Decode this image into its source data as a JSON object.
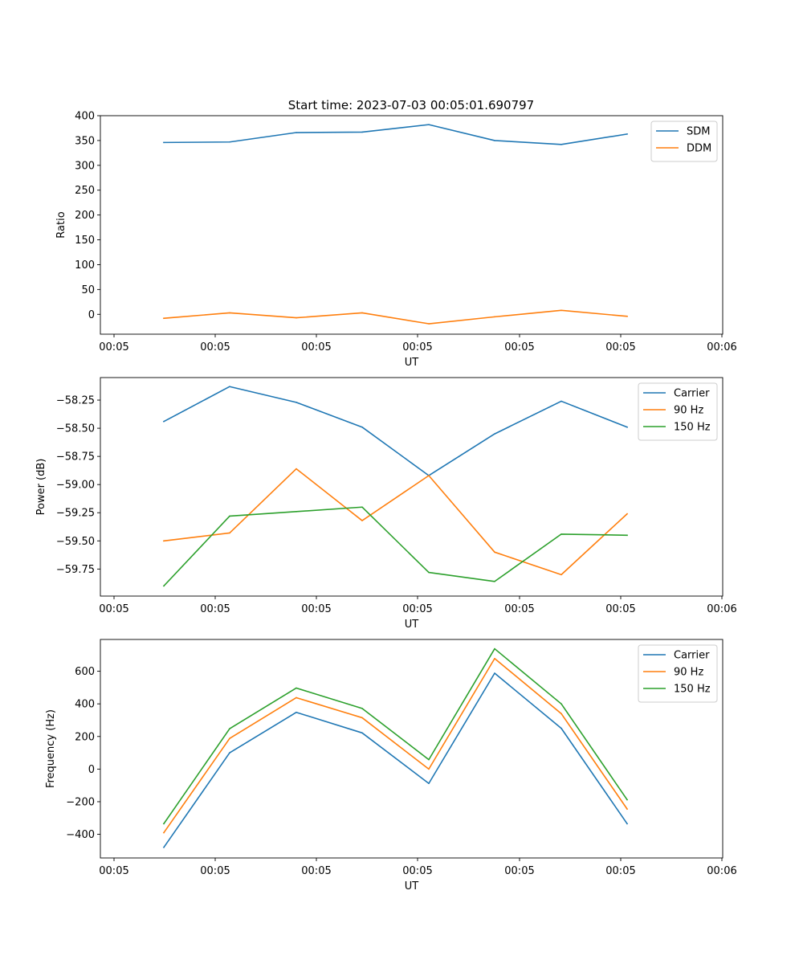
{
  "figure_title": "Start time: 2023-07-03 00:05:01.690797",
  "chart_data": [
    {
      "type": "line",
      "xlabel": "UT",
      "ylabel": "Ratio",
      "x_ticks": [
        "00:05",
        "00:05",
        "00:05",
        "00:05",
        "00:05",
        "00:05",
        "00:05"
      ],
      "x_end_tick": "00:06",
      "ylim": [
        -40,
        400
      ],
      "y_ticks": [
        0,
        50,
        100,
        150,
        200,
        250,
        300,
        350,
        400
      ],
      "y_tick_labels": [
        "0",
        "50",
        "100",
        "150",
        "200",
        "250",
        "300",
        "350",
        "400"
      ],
      "legend": "upper right",
      "series": [
        {
          "name": "SDM",
          "color": "#1f77b4",
          "values": [
            346,
            347,
            366,
            367,
            382,
            350,
            342,
            363
          ]
        },
        {
          "name": "DDM",
          "color": "#ff7f0e",
          "values": [
            -8,
            3,
            -7,
            3,
            -19,
            -5,
            8,
            -4
          ]
        }
      ]
    },
    {
      "type": "line",
      "xlabel": "UT",
      "ylabel": "Power (dB)",
      "x_ticks": [
        "00:05",
        "00:05",
        "00:05",
        "00:05",
        "00:05",
        "00:05",
        "00:05"
      ],
      "x_end_tick": "00:06",
      "ylim": [
        -59.99,
        -58.05
      ],
      "y_ticks": [
        -58.25,
        -58.5,
        -58.75,
        -59.0,
        -59.25,
        -59.5,
        -59.75
      ],
      "y_tick_labels": [
        "−58.25",
        "−58.50",
        "−58.75",
        "−59.00",
        "−59.25",
        "−59.50",
        "−59.75"
      ],
      "legend": "upper right",
      "series": [
        {
          "name": "Carrier",
          "color": "#1f77b4",
          "values": [
            -58.44,
            -58.13,
            -58.27,
            -58.49,
            -58.92,
            -58.55,
            -58.26,
            -58.49
          ]
        },
        {
          "name": "90 Hz",
          "color": "#ff7f0e",
          "values": [
            -59.5,
            -59.43,
            -58.86,
            -59.32,
            -58.92,
            -59.6,
            -59.8,
            -59.26
          ]
        },
        {
          "name": "150 Hz",
          "color": "#2ca02c",
          "values": [
            -59.9,
            -59.28,
            -59.24,
            -59.2,
            -59.78,
            -59.86,
            -59.44,
            -59.45
          ]
        }
      ]
    },
    {
      "type": "line",
      "xlabel": "UT",
      "ylabel": "Frequency (Hz)",
      "x_ticks": [
        "00:05",
        "00:05",
        "00:05",
        "00:05",
        "00:05",
        "00:05",
        "00:05"
      ],
      "x_end_tick": "00:06",
      "ylim": [
        -545,
        795
      ],
      "y_ticks": [
        -400,
        -200,
        0,
        200,
        400,
        600
      ],
      "y_tick_labels": [
        "−400",
        "−200",
        "0",
        "200",
        "400",
        "600"
      ],
      "legend": "upper right",
      "series": [
        {
          "name": "Carrier",
          "color": "#1f77b4",
          "values": [
            -480,
            100,
            348,
            222,
            -88,
            588,
            250,
            -335
          ]
        },
        {
          "name": "90 Hz",
          "color": "#ff7f0e",
          "values": [
            -390,
            188,
            438,
            315,
            0,
            678,
            340,
            -245
          ]
        },
        {
          "name": "150 Hz",
          "color": "#2ca02c",
          "values": [
            -335,
            248,
            497,
            372,
            58,
            738,
            400,
            -188
          ]
        }
      ]
    }
  ]
}
